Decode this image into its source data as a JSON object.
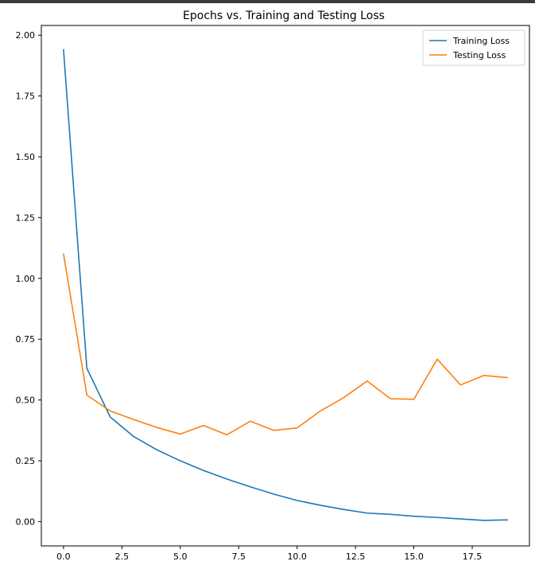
{
  "chart_data": {
    "type": "line",
    "title": "Epochs vs. Training and Testing Loss",
    "xlabel": "",
    "ylabel": "",
    "x": [
      0,
      1,
      2,
      3,
      4,
      5,
      6,
      7,
      8,
      9,
      10,
      11,
      12,
      13,
      14,
      15,
      16,
      17,
      18,
      19
    ],
    "xlim": [
      -0.95,
      19.95
    ],
    "ylim": [
      -0.1,
      2.04
    ],
    "xticks": [
      0,
      2.5,
      5,
      7.5,
      10,
      12.5,
      15,
      17.5
    ],
    "xtick_labels": [
      "0.0",
      "2.5",
      "5.0",
      "7.5",
      "10.0",
      "12.5",
      "15.0",
      "17.5"
    ],
    "yticks": [
      0,
      0.25,
      0.5,
      0.75,
      1.0,
      1.25,
      1.5,
      1.75,
      2.0
    ],
    "ytick_labels": [
      "0.00",
      "0.25",
      "0.50",
      "0.75",
      "1.00",
      "1.25",
      "1.50",
      "1.75",
      "2.00"
    ],
    "grid": false,
    "legend_position": "top-right",
    "series": [
      {
        "name": "Training Loss",
        "color": "#1f77b4",
        "values": [
          1.94,
          0.63,
          0.43,
          0.35,
          0.295,
          0.25,
          0.21,
          0.175,
          0.143,
          0.113,
          0.087,
          0.067,
          0.05,
          0.035,
          0.03,
          0.022,
          0.017,
          0.011,
          0.005,
          0.007
        ]
      },
      {
        "name": "Testing Loss",
        "color": "#ff7f0e",
        "values": [
          1.1,
          0.52,
          0.455,
          0.42,
          0.387,
          0.36,
          0.395,
          0.357,
          0.413,
          0.375,
          0.385,
          0.455,
          0.51,
          0.578,
          0.505,
          0.503,
          0.668,
          0.562,
          0.601,
          0.592
        ]
      }
    ]
  }
}
